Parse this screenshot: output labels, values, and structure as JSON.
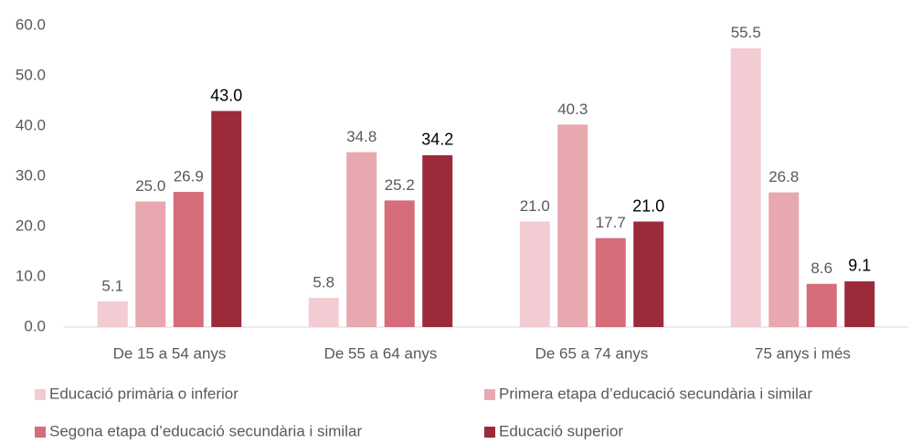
{
  "chart_data": {
    "type": "bar",
    "categories": [
      "De 15 a 54 anys",
      "De 55 a 64 anys",
      "De 65 a 74 anys",
      "75 anys i més"
    ],
    "series": [
      {
        "name": "Educació primària o inferior",
        "color": "#f2ccd2",
        "values": [
          5.1,
          5.8,
          21.0,
          55.5
        ],
        "value_labels": [
          "5.1",
          "5.8",
          "21.0",
          "55.5"
        ]
      },
      {
        "name": "Primera etapa d’educació secundària i similar",
        "color": "#e8a8b0",
        "values": [
          25.0,
          34.8,
          40.3,
          26.8
        ],
        "value_labels": [
          "25.0",
          "34.8",
          "40.3",
          "26.8"
        ]
      },
      {
        "name": "Segona etapa d’educació secundària i similar",
        "color": "#d66b7a",
        "values": [
          26.9,
          25.2,
          17.7,
          8.6
        ],
        "value_labels": [
          "26.9",
          "25.2",
          "17.7",
          "8.6"
        ]
      },
      {
        "name": "Educació superior",
        "color": "#9c2a3b",
        "values": [
          43.0,
          34.2,
          21.0,
          9.1
        ],
        "value_labels": [
          "43.0",
          "34.2",
          "21.0",
          "9.1"
        ]
      }
    ],
    "ylim": [
      0,
      60
    ],
    "yticks": [
      {
        "value": 0,
        "label": "0.0"
      },
      {
        "value": 10,
        "label": "10.0"
      },
      {
        "value": 20,
        "label": "20.0"
      },
      {
        "value": 30,
        "label": "30.0"
      },
      {
        "value": 40,
        "label": "40.0"
      },
      {
        "value": 50,
        "label": "50.0"
      },
      {
        "value": 60,
        "label": "60.0"
      }
    ],
    "grid": false
  }
}
